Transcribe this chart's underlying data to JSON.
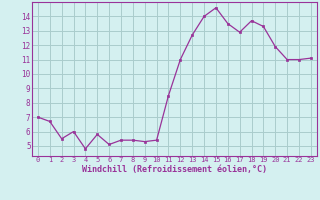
{
  "x": [
    0,
    1,
    2,
    3,
    4,
    5,
    6,
    7,
    8,
    9,
    10,
    11,
    12,
    13,
    14,
    15,
    16,
    17,
    18,
    19,
    20,
    21,
    22,
    23
  ],
  "y": [
    7.0,
    6.7,
    5.5,
    6.0,
    4.8,
    5.8,
    5.1,
    5.4,
    5.4,
    5.3,
    5.4,
    8.5,
    11.0,
    12.7,
    14.0,
    14.6,
    13.5,
    12.9,
    13.7,
    13.3,
    11.9,
    11.0,
    11.0,
    11.1
  ],
  "line_color": "#993399",
  "marker_color": "#993399",
  "bg_color": "#d4f0f0",
  "grid_color": "#aacccc",
  "axis_color": "#993399",
  "xlabel": "Windchill (Refroidissement éolien,°C)",
  "xlim": [
    -0.5,
    23.5
  ],
  "ylim": [
    4.3,
    15.0
  ],
  "yticks": [
    5,
    6,
    7,
    8,
    9,
    10,
    11,
    12,
    13,
    14
  ],
  "xticks": [
    0,
    1,
    2,
    3,
    4,
    5,
    6,
    7,
    8,
    9,
    10,
    11,
    12,
    13,
    14,
    15,
    16,
    17,
    18,
    19,
    20,
    21,
    22,
    23
  ]
}
